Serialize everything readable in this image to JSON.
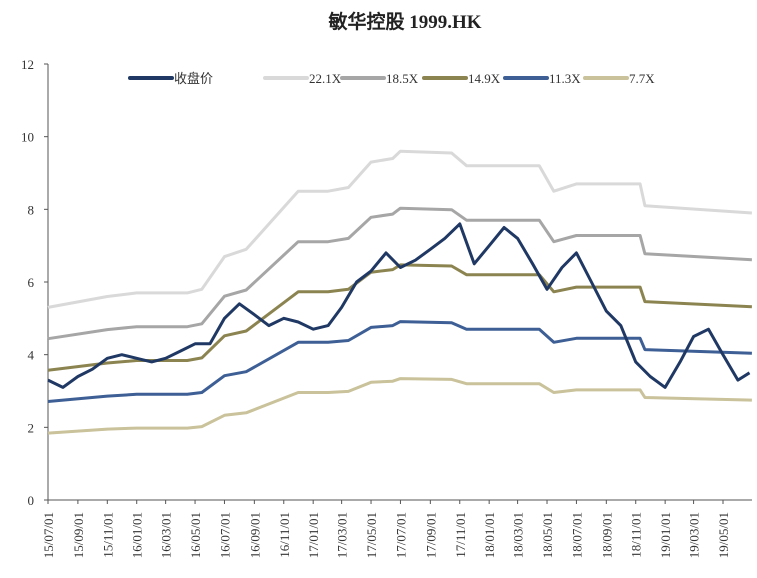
{
  "chart_data": {
    "type": "line",
    "title": "敏华控股 1999.HK",
    "xlabel": "",
    "ylabel": "",
    "ylim": [
      0,
      12
    ],
    "yticks": [
      "0",
      "2",
      "4",
      "6",
      "8",
      "10",
      "12"
    ],
    "xlim": [
      "2015-07-01",
      "2019-06-30"
    ],
    "xticks": [
      "15/07/01",
      "15/09/01",
      "15/11/01",
      "16/01/01",
      "16/03/01",
      "16/05/01",
      "16/07/01",
      "16/09/01",
      "16/11/01",
      "17/01/01",
      "17/03/01",
      "17/05/01",
      "17/07/01",
      "17/09/01",
      "17/11/01",
      "18/01/01",
      "18/03/01",
      "18/05/01",
      "18/07/01",
      "18/09/01",
      "18/11/01",
      "19/01/01",
      "19/03/01",
      "19/05/01"
    ],
    "xtick_dates": [
      "2015-07-01",
      "2015-09-01",
      "2015-11-01",
      "2016-01-01",
      "2016-03-01",
      "2016-05-01",
      "2016-07-01",
      "2016-09-01",
      "2016-11-01",
      "2017-01-01",
      "2017-03-01",
      "2017-05-01",
      "2017-07-01",
      "2017-09-01",
      "2017-11-01",
      "2018-01-01",
      "2018-03-01",
      "2018-05-01",
      "2018-07-01",
      "2018-09-01",
      "2018-11-01",
      "2019-01-01",
      "2019-03-01",
      "2019-05-01"
    ],
    "grid": false,
    "legend": "top",
    "close": {
      "name": "收盘价",
      "color": "#1f3864",
      "x": [
        "2015-07-01",
        "2015-08-01",
        "2015-09-01",
        "2015-10-01",
        "2015-11-01",
        "2015-12-01",
        "2016-01-01",
        "2016-02-01",
        "2016-03-01",
        "2016-04-01",
        "2016-05-01",
        "2016-06-01",
        "2016-07-01",
        "2016-08-01",
        "2016-09-01",
        "2016-10-01",
        "2016-11-01",
        "2016-12-01",
        "2017-01-01",
        "2017-02-01",
        "2017-03-01",
        "2017-04-01",
        "2017-05-01",
        "2017-06-01",
        "2017-07-01",
        "2017-08-01",
        "2017-09-01",
        "2017-10-01",
        "2017-11-01",
        "2017-12-01",
        "2018-01-01",
        "2018-02-01",
        "2018-03-01",
        "2018-04-01",
        "2018-05-01",
        "2018-06-01",
        "2018-07-01",
        "2018-08-01",
        "2018-09-01",
        "2018-10-01",
        "2018-11-01",
        "2018-12-01",
        "2019-01-01",
        "2019-02-01",
        "2019-03-01",
        "2019-04-01",
        "2019-05-01",
        "2019-06-01",
        "2019-06-25"
      ],
      "values": [
        3.3,
        3.1,
        3.4,
        3.6,
        3.9,
        4.0,
        3.9,
        3.8,
        3.9,
        4.1,
        4.3,
        4.3,
        5.0,
        5.4,
        5.1,
        4.8,
        5.0,
        4.9,
        4.7,
        4.8,
        5.3,
        6.0,
        6.3,
        6.8,
        6.4,
        6.6,
        6.9,
        7.2,
        7.6,
        6.5,
        7.0,
        7.5,
        7.2,
        6.5,
        5.8,
        6.4,
        6.8,
        6.0,
        5.2,
        4.8,
        3.8,
        3.4,
        3.1,
        3.8,
        4.5,
        4.7,
        4.0,
        3.3,
        3.5
      ]
    },
    "bands_x": [
      "2015-07-01",
      "2015-11-01",
      "2016-01-01",
      "2016-04-15",
      "2016-05-15",
      "2016-07-01",
      "2016-08-15",
      "2016-12-01",
      "2017-02-01",
      "2017-03-15",
      "2017-05-01",
      "2017-06-15",
      "2017-07-01",
      "2017-10-15",
      "2017-11-15",
      "2018-04-15",
      "2018-05-15",
      "2018-07-01",
      "2018-11-10",
      "2018-11-20",
      "2019-06-30"
    ],
    "series": [
      {
        "name": "22.1X",
        "color": "#d9d9d9",
        "values": [
          5.3,
          5.6,
          5.7,
          5.7,
          5.8,
          6.7,
          6.9,
          8.5,
          8.5,
          8.6,
          9.3,
          9.4,
          9.6,
          9.55,
          9.2,
          9.2,
          8.5,
          8.7,
          8.7,
          8.1,
          7.9
        ]
      },
      {
        "name": "18.5X",
        "color": "#a6a6a6",
        "values": [
          4.44,
          4.69,
          4.77,
          4.77,
          4.85,
          5.61,
          5.78,
          7.11,
          7.11,
          7.2,
          7.78,
          7.87,
          8.03,
          7.99,
          7.7,
          7.7,
          7.11,
          7.28,
          7.28,
          6.78,
          6.61
        ]
      },
      {
        "name": "14.9X",
        "color": "#8c8450",
        "values": [
          3.57,
          3.77,
          3.84,
          3.84,
          3.91,
          4.52,
          4.65,
          5.73,
          5.73,
          5.8,
          6.27,
          6.34,
          6.47,
          6.44,
          6.2,
          6.2,
          5.73,
          5.86,
          5.86,
          5.46,
          5.32
        ]
      },
      {
        "name": "11.3X",
        "color": "#3d5f95",
        "values": [
          2.71,
          2.86,
          2.91,
          2.91,
          2.96,
          3.42,
          3.53,
          4.34,
          4.34,
          4.39,
          4.75,
          4.8,
          4.91,
          4.88,
          4.7,
          4.7,
          4.34,
          4.45,
          4.45,
          4.14,
          4.04
        ]
      },
      {
        "name": "7.7X",
        "color": "#c9c29a",
        "values": [
          1.84,
          1.95,
          1.98,
          1.98,
          2.02,
          2.33,
          2.4,
          2.96,
          2.96,
          2.99,
          3.24,
          3.27,
          3.34,
          3.32,
          3.2,
          3.2,
          2.96,
          3.03,
          3.03,
          2.82,
          2.75
        ]
      }
    ]
  }
}
